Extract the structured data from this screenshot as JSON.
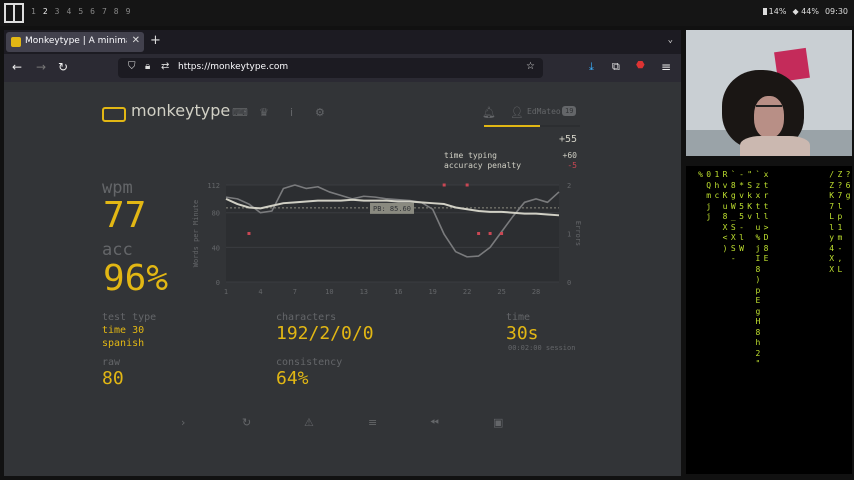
{
  "topbar": {
    "workspaces": [
      "1",
      "2",
      "3",
      "4",
      "5",
      "6",
      "7",
      "8",
      "9"
    ],
    "active_workspace": "2",
    "battery": "14%",
    "wifi": "44%",
    "clock": "09:30"
  },
  "browser": {
    "tab_title": "Monkeytype | A minimalistic",
    "url": "https://monkeytype.com"
  },
  "monkeytype": {
    "logo_text": "monkeytype",
    "user": {
      "name": "EdMateo",
      "level": "19"
    },
    "xp": {
      "total": "+55",
      "rows": [
        {
          "label": "time typing",
          "value": "+60"
        },
        {
          "label": "accuracy penalty",
          "value": "-5"
        }
      ]
    },
    "wpm": {
      "label": "wpm",
      "value": "77"
    },
    "acc": {
      "label": "acc",
      "value": "96%"
    },
    "test_type": {
      "label": "test type",
      "line1": "time 30",
      "line2": "spanish"
    },
    "raw": {
      "label": "raw",
      "value": "80"
    },
    "characters": {
      "label": "characters",
      "value": "192/2/0/0"
    },
    "consistency": {
      "label": "consistency",
      "value": "64%"
    },
    "time": {
      "label": "time",
      "value": "30s",
      "session": "00:02:00 session"
    }
  },
  "chart_data": {
    "type": "line",
    "x": [
      1,
      2,
      3,
      4,
      5,
      6,
      7,
      8,
      9,
      10,
      11,
      12,
      13,
      14,
      15,
      16,
      17,
      18,
      19,
      20,
      21,
      22,
      23,
      24,
      25,
      26,
      27,
      28,
      29,
      30
    ],
    "x_ticks": [
      "1",
      "4",
      "7",
      "10",
      "13",
      "16",
      "19",
      "22",
      "25",
      "28"
    ],
    "ylabel": "Words per Minute",
    "ylabel_right": "Errors",
    "y_ticks": [
      "0",
      "40",
      "80",
      "112"
    ],
    "y_right_ticks": [
      "0",
      "1",
      "2"
    ],
    "ylim": [
      0,
      112
    ],
    "y_right_lim": [
      0,
      2
    ],
    "pb_label": "PB: 85.60",
    "pb_value": 85.6,
    "series": [
      {
        "values": [
          96,
          90,
          86,
          85,
          88,
          91,
          92,
          93,
          94,
          94,
          94,
          95,
          94,
          94,
          94,
          93,
          93,
          92,
          91,
          90,
          86,
          84,
          82,
          81,
          81,
          80,
          79,
          79,
          78,
          77
        ]
      },
      {
        "values": [
          98,
          96,
          90,
          80,
          82,
          108,
          112,
          108,
          110,
          104,
          100,
          96,
          99,
          98,
          96,
          95,
          94,
          92,
          84,
          55,
          35,
          29,
          30,
          40,
          58,
          76,
          92,
          96,
          92,
          104
        ]
      }
    ],
    "errors": [
      {
        "x": 3,
        "y": 1
      },
      {
        "x": 20,
        "y": 2
      },
      {
        "x": 22,
        "y": 2
      },
      {
        "x": 23,
        "y": 1
      },
      {
        "x": 24,
        "y": 1
      },
      {
        "x": 25,
        "y": 1
      }
    ],
    "grid": true
  },
  "matrix_columns": [
    "% ",
    "0Qmjj",
    "1hc",
    "RvKu8X<)",
    "`8gW_SXS-",
    "-*v55-lW",
    "\"SkKv",
    "`zxtlu%jI8)pEgH8h2\"",
    "xtrtl>D8E",
    "",
    "",
    "",
    "",
    "",
    "",
    "",
    "/ZK7Lly4XX",
    "Z?7lp1m-,L",
    "?6g"
  ],
  "colors": {
    "bg": "#323437",
    "main": "#e2b714",
    "sub": "#646669",
    "text": "#d1d0c5",
    "error": "#ca4754"
  }
}
